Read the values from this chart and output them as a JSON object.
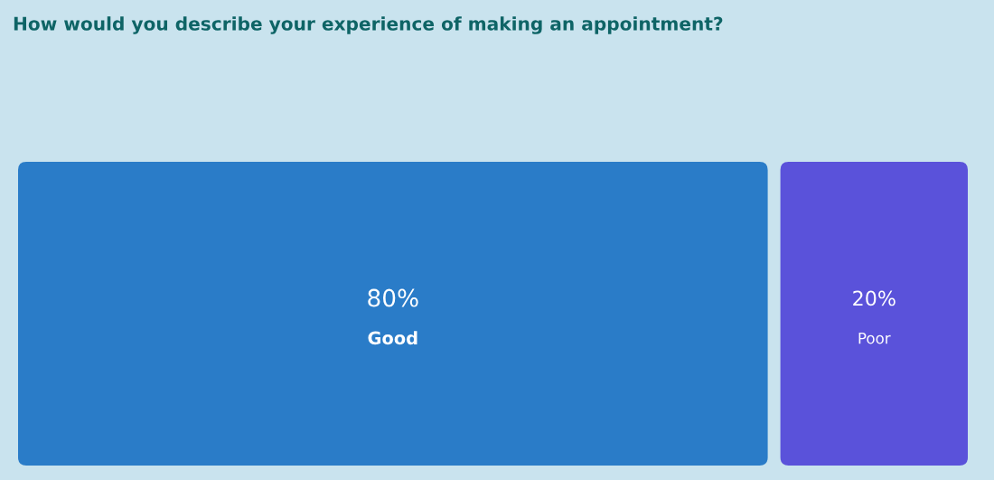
{
  "chart_data": {
    "type": "other",
    "title": "How would you describe your experience of making an appointment?",
    "categories": [
      "Good",
      "Poor"
    ],
    "values": [
      80,
      20
    ],
    "value_labels": [
      "80%",
      "20%"
    ],
    "colors": [
      "#2a7cc8",
      "#5a52da"
    ]
  }
}
